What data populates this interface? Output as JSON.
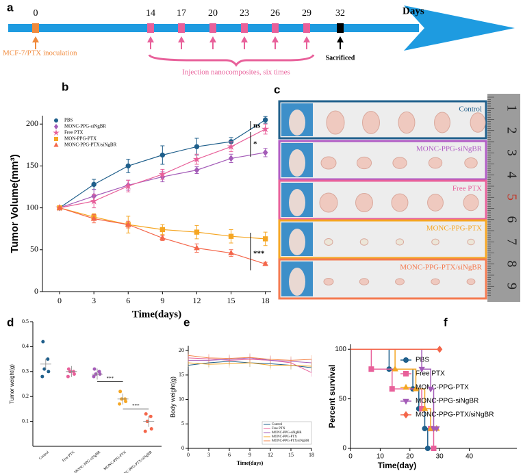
{
  "timeline": {
    "panel": "a",
    "days": [
      0,
      14,
      17,
      20,
      23,
      26,
      29,
      32
    ],
    "axis_label": "Days",
    "inoculation": "MCF-7/PTX  inoculation",
    "injection": "Injection nanocomposites, six times",
    "sacrificed": "Sacrificed"
  },
  "photo_panel": {
    "panel": "c",
    "rows": [
      {
        "label": "Control",
        "color": "#1f5f8b"
      },
      {
        "label": "MONC-PPG-siNgBR",
        "color": "#b05cc4"
      },
      {
        "label": "Free PTX",
        "color": "#e8609a"
      },
      {
        "label": "MONC-PPG-PTX",
        "color": "#f5a623"
      },
      {
        "label": "MONC-PPG-PTX/siNgBR",
        "color": "#f47a50"
      }
    ],
    "ruler_labels": [
      1,
      2,
      3,
      4,
      5,
      6,
      7,
      8,
      9
    ]
  },
  "chart_data": [
    {
      "type": "line",
      "panel": "b",
      "x_label": "Time(days)",
      "y_label": "Tumor Volume(mm³)",
      "x": [
        0,
        3,
        6,
        9,
        12,
        15,
        18
      ],
      "xlim": [
        -1.5,
        18.5
      ],
      "xticks": [
        0,
        3,
        6,
        9,
        12,
        15,
        18
      ],
      "ylim": [
        0,
        210
      ],
      "yticks": [
        0,
        50,
        100,
        150,
        200
      ],
      "legend": "top-left",
      "annotations": [
        "ns",
        "*",
        "***"
      ],
      "series": [
        {
          "name": "PBS",
          "color": "#1f5f8b",
          "marker": "circle",
          "values": [
            100,
            128,
            150,
            163,
            173,
            179,
            205
          ],
          "errors": [
            0,
            6,
            8,
            11,
            10,
            5,
            4
          ]
        },
        {
          "name": "MONC-PPG-siNgBR",
          "color": "#a45cb8",
          "marker": "diamond",
          "values": [
            100,
            114,
            127,
            137,
            145,
            159,
            166
          ],
          "errors": [
            0,
            8,
            6,
            6,
            4,
            5,
            5
          ]
        },
        {
          "name": "Free PTX",
          "color": "#e8609a",
          "marker": "star",
          "values": [
            100,
            108,
            126,
            140,
            158,
            173,
            194
          ],
          "errors": [
            0,
            8,
            7,
            6,
            6,
            6,
            6
          ]
        },
        {
          "name": "MON-PPG-PTX",
          "color": "#f5a623",
          "marker": "square",
          "values": [
            100,
            89,
            80,
            74,
            71,
            66,
            63
          ],
          "errors": [
            0,
            4,
            10,
            6,
            8,
            8,
            8
          ]
        },
        {
          "name": "MONC-PPG-PTX/siNgBR",
          "color": "#f4664a",
          "marker": "triangle",
          "values": [
            100,
            87,
            80,
            64,
            52,
            46,
            33
          ],
          "errors": [
            0,
            5,
            4,
            3,
            5,
            4,
            2
          ]
        }
      ]
    },
    {
      "type": "dot",
      "panel": "d",
      "y_label": "Tumor weight(g)",
      "categories": [
        "Control",
        "Free PTX",
        "MONC-PPG-siNgBR",
        "MONC-PPG-PTX",
        "MONC-PPG-PTX/siNgBR"
      ],
      "colors": [
        "#1f5f8b",
        "#e8609a",
        "#a45cb8",
        "#f5a623",
        "#f4664a"
      ],
      "values": [
        [
          0.42,
          0.35,
          0.31,
          0.3,
          0.28
        ],
        [
          0.31,
          0.3,
          0.3,
          0.29,
          0.28
        ],
        [
          0.31,
          0.3,
          0.29,
          0.29,
          0.28
        ],
        [
          0.22,
          0.19,
          0.19,
          0.18,
          0.17
        ],
        [
          0.13,
          0.12,
          0.1,
          0.07,
          0.06
        ]
      ],
      "means": [
        0.33,
        0.3,
        0.29,
        0.19,
        0.1
      ],
      "ylim": [
        0,
        0.5
      ],
      "yticks": [
        0.1,
        0.2,
        0.3,
        0.4,
        0.5
      ],
      "annotations": [
        "***",
        "***"
      ]
    },
    {
      "type": "line",
      "panel": "e",
      "x_label": "Time(days)",
      "y_label": "Body weight(g)",
      "x": [
        0,
        3,
        6,
        9,
        12,
        15,
        18
      ],
      "xlim": [
        0,
        18
      ],
      "xticks": [
        0,
        3,
        6,
        9,
        12,
        15,
        18
      ],
      "ylim": [
        0,
        21
      ],
      "yticks": [
        0,
        5,
        10,
        15,
        20
      ],
      "legend": "bottom-right",
      "series": [
        {
          "name": "Control",
          "color": "#1f5f8b",
          "values": [
            17,
            17.5,
            17.8,
            17.5,
            17.3,
            17,
            16.5
          ]
        },
        {
          "name": "Free PTX",
          "color": "#e8609a",
          "values": [
            18.5,
            18.3,
            18,
            18.2,
            18,
            17.5,
            15.5
          ]
        },
        {
          "name": "MONC-PPG-siNgBR",
          "color": "#a45cb8",
          "values": [
            18,
            18,
            18.2,
            18.5,
            18,
            17.8,
            17.5
          ]
        },
        {
          "name": "MONC-PPG-PTX",
          "color": "#f5a623",
          "values": [
            17.5,
            17.2,
            17.3,
            17.5,
            17,
            17,
            16.8
          ]
        },
        {
          "name": "MONC-PPG-PTX/siNgBR",
          "color": "#f4864a",
          "values": [
            19,
            18.5,
            18.4,
            18.6,
            18.2,
            18,
            18.2
          ]
        }
      ]
    },
    {
      "type": "step",
      "panel": "f",
      "x_label": "Time(day)",
      "y_label": "Percent survival",
      "xlim": [
        0,
        56
      ],
      "xticks": [
        0,
        10,
        20,
        30,
        40
      ],
      "ylim": [
        0,
        105
      ],
      "yticks": [
        0,
        50,
        100
      ],
      "legend": "top-right",
      "series": [
        {
          "name": "PBS",
          "color": "#1f5f8b",
          "marker": "circle",
          "x": [
            0,
            13,
            21,
            23,
            25,
            26
          ],
          "values": [
            100,
            80,
            60,
            40,
            20,
            0
          ]
        },
        {
          "name": "Free PTX",
          "color": "#e8609a",
          "marker": "square",
          "x": [
            0,
            7,
            14,
            24,
            27,
            28
          ],
          "values": [
            100,
            80,
            60,
            40,
            20,
            0
          ]
        },
        {
          "name": "MONC-PPG-PTX",
          "color": "#f5a623",
          "marker": "triangle",
          "x": [
            0,
            15,
            22,
            25,
            27,
            29
          ],
          "values": [
            100,
            80,
            60,
            40,
            20,
            20
          ]
        },
        {
          "name": "MONC-PPG-siNgBR",
          "color": "#a45cb8",
          "marker": "triangle-down",
          "x": [
            0,
            24,
            27,
            28,
            29
          ],
          "values": [
            100,
            80,
            60,
            20,
            20
          ]
        },
        {
          "name": "MONC-PPG-PTX/siNgBR",
          "color": "#f4664a",
          "marker": "diamond",
          "x": [
            0,
            30
          ],
          "values": [
            100,
            100
          ]
        }
      ]
    }
  ]
}
